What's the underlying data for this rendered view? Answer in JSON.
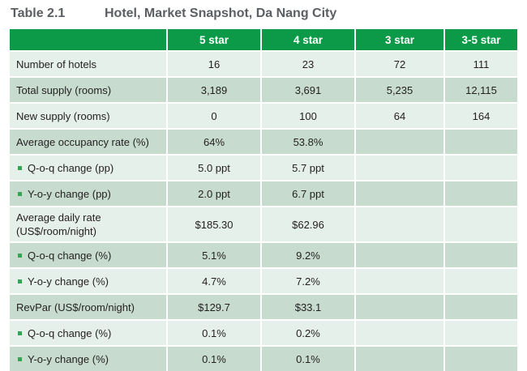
{
  "header": {
    "table_no": "Table 2.1",
    "title": "Hotel, Market Snapshot, Da Nang City"
  },
  "table": {
    "columns": [
      "",
      "5 star",
      "4 star",
      "3 star",
      "3-5 star"
    ],
    "rows": [
      {
        "label": "Number of hotels",
        "values": [
          "16",
          "23",
          "72",
          "111"
        ]
      },
      {
        "label": "Total supply (rooms)",
        "values": [
          "3,189",
          "3,691",
          "5,235",
          "12,115"
        ]
      },
      {
        "label": "New supply (rooms)",
        "values": [
          "0",
          "100",
          "64",
          "164"
        ]
      },
      {
        "label": "Average occupancy rate (%)",
        "values": [
          "64%",
          "53.8%",
          "",
          ""
        ]
      },
      {
        "label": "Q-o-q change (pp)",
        "values": [
          "5.0 ppt",
          "5.7 ppt",
          "",
          ""
        ]
      },
      {
        "label": "Y-o-y change (pp)",
        "values": [
          "2.0 ppt",
          "6.7 ppt",
          "",
          ""
        ]
      },
      {
        "label_line1": "Average daily rate",
        "label_line2": "(US$/room/night)",
        "values": [
          "$185.30",
          "$62.96",
          "",
          ""
        ]
      },
      {
        "label": "Q-o-q change (%)",
        "values": [
          "5.1%",
          "9.2%",
          "",
          ""
        ]
      },
      {
        "label": "Y-o-y change (%)",
        "values": [
          "4.7%",
          "7.2%",
          "",
          ""
        ]
      },
      {
        "label": "RevPar (US$/room/night)",
        "values": [
          "$129.7",
          "$33.1",
          "",
          ""
        ]
      },
      {
        "label": "Q-o-q change (%)",
        "values": [
          "0.1%",
          "0.2%",
          "",
          ""
        ]
      },
      {
        "label": "Y-o-y change (%)",
        "values": [
          "0.1%",
          "0.1%",
          "",
          ""
        ]
      }
    ]
  },
  "colors": {
    "header_bg": "#0c9a48",
    "row_light": "#e6f0ea",
    "row_dark": "#c7dccf",
    "bullet": "#33a553"
  }
}
